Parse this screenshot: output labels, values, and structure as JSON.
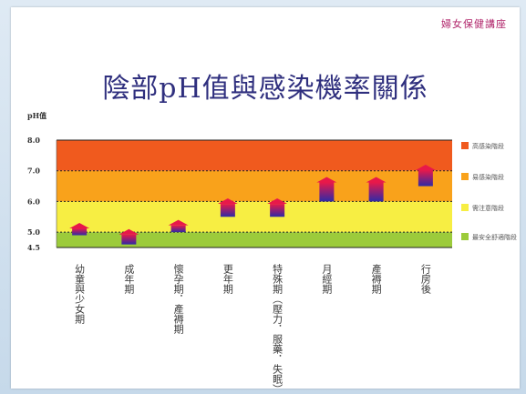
{
  "slide": {
    "corner_title": "婦女保健講座",
    "title": "陰部pH值與感染機率關係"
  },
  "chart_data": {
    "type": "bar",
    "ylabel": "pH值",
    "ylim": [
      4.5,
      8.0
    ],
    "yticks": [
      "8.0",
      "7.0",
      "6.0",
      "5.0",
      "4.5"
    ],
    "zones": [
      {
        "from": 7.0,
        "to": 8.0,
        "color": "#f05a1e",
        "label": "高感染階段"
      },
      {
        "from": 6.0,
        "to": 7.0,
        "color": "#f9a21b",
        "label": "易感染階段"
      },
      {
        "from": 5.0,
        "to": 6.0,
        "color": "#f7ee43",
        "label": "需注意階段"
      },
      {
        "from": 4.5,
        "to": 5.0,
        "color": "#9ccb3b",
        "label": "最安全舒適階段"
      }
    ],
    "categories": [
      {
        "label": "幼童與少女期",
        "highlight": false
      },
      {
        "label": "成年期",
        "highlight": false
      },
      {
        "label": "懷孕期．產褥期",
        "highlight": false
      },
      {
        "label": "更年期",
        "highlight": true
      },
      {
        "label": "特殊期（壓力．服藥．失眠）",
        "highlight": false
      },
      {
        "label": "月經期",
        "highlight": false
      },
      {
        "label": "產褥期",
        "highlight": false
      },
      {
        "label": "行房後",
        "highlight": false
      }
    ],
    "ranges": [
      [
        4.9,
        5.3
      ],
      [
        4.6,
        5.1
      ],
      [
        5.0,
        5.4
      ],
      [
        5.5,
        6.1
      ],
      [
        5.5,
        6.1
      ],
      [
        6.0,
        6.8
      ],
      [
        6.0,
        6.8
      ],
      [
        6.5,
        7.2
      ]
    ],
    "highlight_color": "#e2572a",
    "bar_color_top": "#e8184a",
    "bar_color_bottom": "#2f2aa6"
  }
}
